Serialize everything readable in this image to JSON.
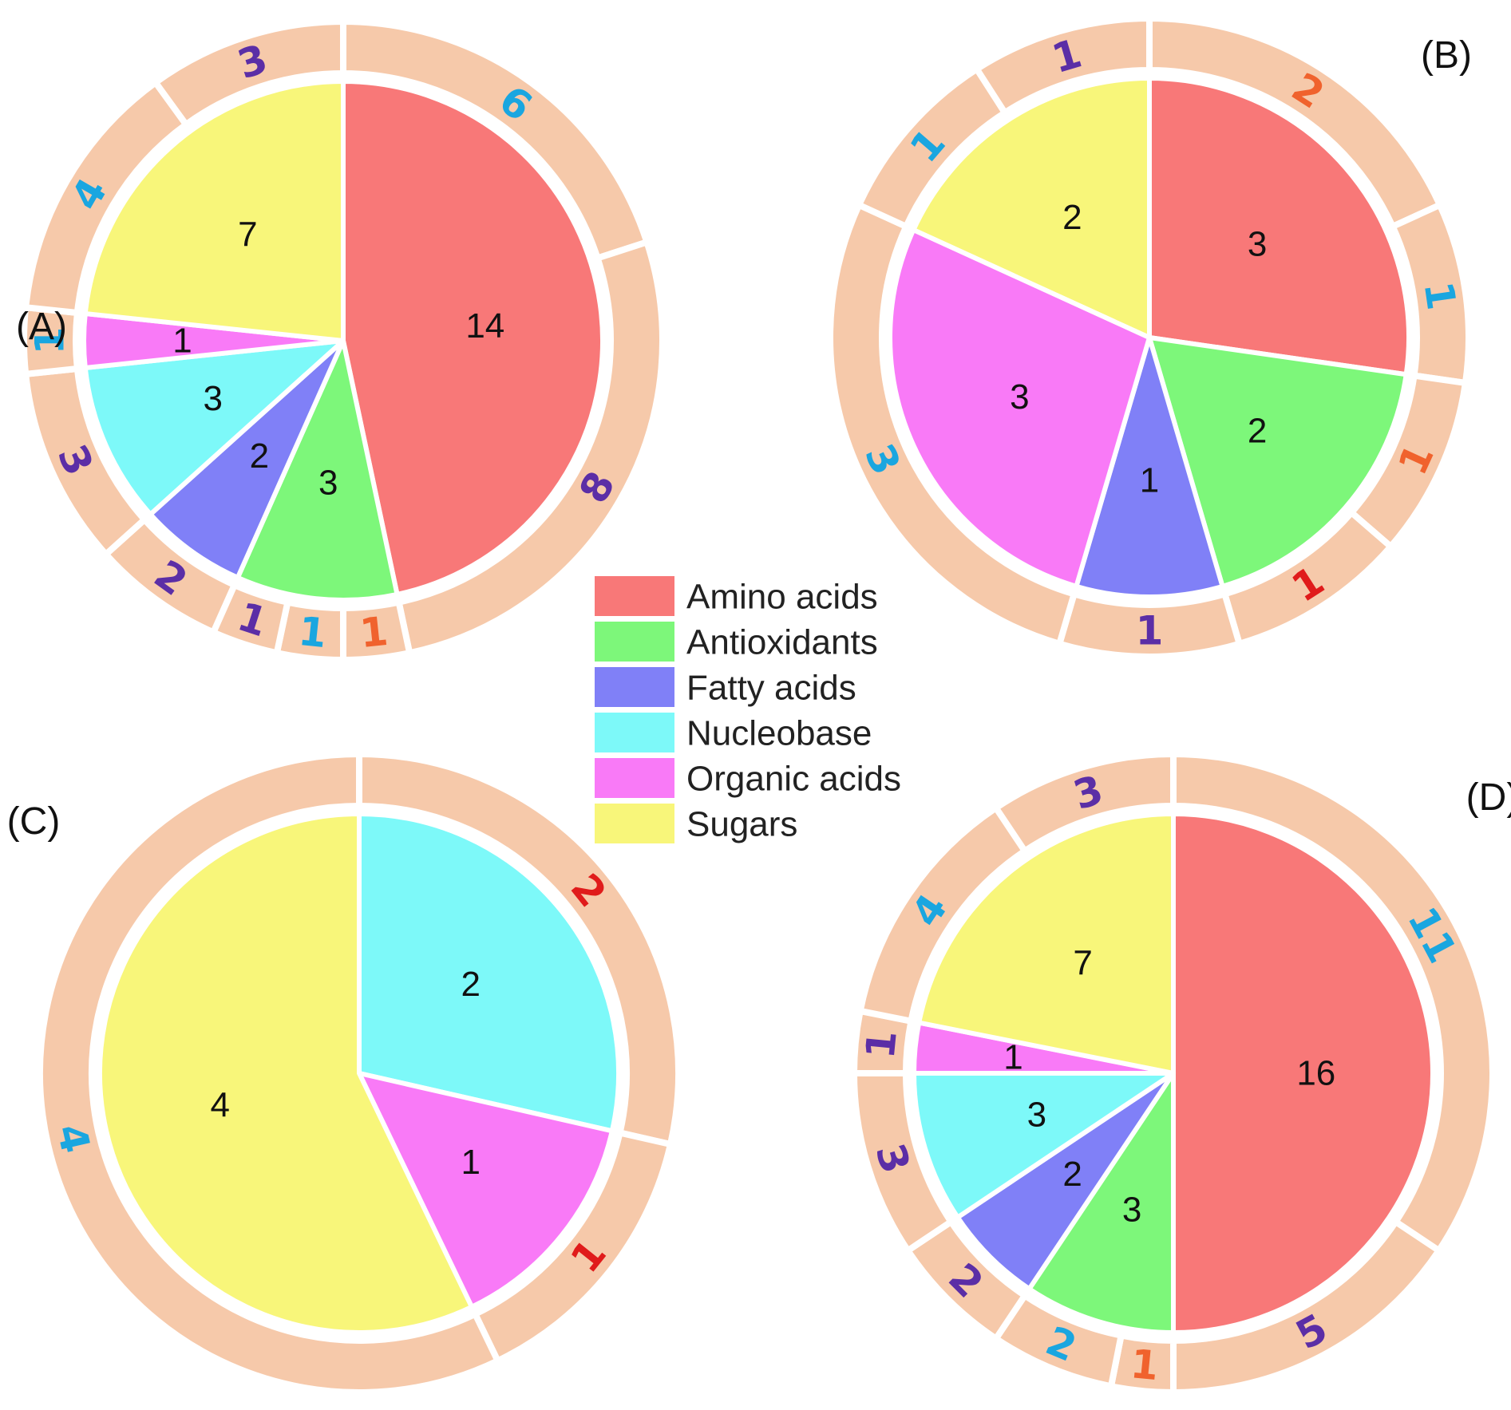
{
  "chart_data": [
    {
      "type": "pie",
      "panel": "(A)",
      "slices": [
        {
          "category": "Amino acids",
          "value": 14,
          "color": "#f87878"
        },
        {
          "category": "Antioxidants",
          "value": 3,
          "color": "#7df77a"
        },
        {
          "category": "Fatty acids",
          "value": 2,
          "color": "#8080f7"
        },
        {
          "category": "Nucleobase",
          "value": 3,
          "color": "#7df9f9"
        },
        {
          "category": "Organic acids",
          "value": 1,
          "color": "#f97af7"
        },
        {
          "category": "Sugars",
          "value": 7,
          "color": "#f8f67a"
        }
      ],
      "outer_ring": [
        {
          "value": 6,
          "color": "#1aa6e0"
        },
        {
          "value": 8,
          "color": "#5b2ea6"
        },
        {
          "value": 1,
          "color": "#f0622d"
        },
        {
          "value": 1,
          "color": "#1aa6e0"
        },
        {
          "value": 1,
          "color": "#5b2ea6"
        },
        {
          "value": 2,
          "color": "#5b2ea6"
        },
        {
          "value": 3,
          "color": "#5b2ea6"
        },
        {
          "value": 1,
          "color": "#1aa6e0"
        },
        {
          "value": 4,
          "color": "#1aa6e0"
        },
        {
          "value": 3,
          "color": "#5b2ea6"
        }
      ]
    },
    {
      "type": "pie",
      "panel": "(B)",
      "slices": [
        {
          "category": "Amino acids",
          "value": 3,
          "color": "#f87878"
        },
        {
          "category": "Antioxidants",
          "value": 2,
          "color": "#7df77a"
        },
        {
          "category": "Fatty acids",
          "value": 1,
          "color": "#8080f7"
        },
        {
          "category": "Organic acids",
          "value": 3,
          "color": "#f97af7"
        },
        {
          "category": "Sugars",
          "value": 2,
          "color": "#f8f67a"
        }
      ],
      "outer_ring": [
        {
          "value": 2,
          "color": "#f0622d"
        },
        {
          "value": 1,
          "color": "#1aa6e0"
        },
        {
          "value": 1,
          "color": "#f0622d"
        },
        {
          "value": 1,
          "color": "#e01b1b"
        },
        {
          "value": 1,
          "color": "#5b2ea6"
        },
        {
          "value": 3,
          "color": "#1aa6e0"
        },
        {
          "value": 1,
          "color": "#1aa6e0"
        },
        {
          "value": 1,
          "color": "#5b2ea6"
        }
      ]
    },
    {
      "type": "pie",
      "panel": "(C)",
      "slices": [
        {
          "category": "Nucleobase",
          "value": 2,
          "color": "#7df9f9"
        },
        {
          "category": "Organic acids",
          "value": 1,
          "color": "#f97af7"
        },
        {
          "category": "Sugars",
          "value": 4,
          "color": "#f8f67a"
        }
      ],
      "outer_ring": [
        {
          "value": 2,
          "color": "#e01b1b"
        },
        {
          "value": 1,
          "color": "#e01b1b"
        },
        {
          "value": 4,
          "color": "#1aa6e0"
        }
      ]
    },
    {
      "type": "pie",
      "panel": "(D)",
      "slices": [
        {
          "category": "Amino acids",
          "value": 16,
          "color": "#f87878"
        },
        {
          "category": "Antioxidants",
          "value": 3,
          "color": "#7df77a"
        },
        {
          "category": "Fatty acids",
          "value": 2,
          "color": "#8080f7"
        },
        {
          "category": "Nucleobase",
          "value": 3,
          "color": "#7df9f9"
        },
        {
          "category": "Organic acids",
          "value": 1,
          "color": "#f97af7"
        },
        {
          "category": "Sugars",
          "value": 7,
          "color": "#f8f67a"
        }
      ],
      "outer_ring": [
        {
          "value": 11,
          "color": "#1aa6e0"
        },
        {
          "value": 5,
          "color": "#5b2ea6"
        },
        {
          "value": 1,
          "color": "#f0622d"
        },
        {
          "value": 2,
          "color": "#1aa6e0"
        },
        {
          "value": 2,
          "color": "#5b2ea6"
        },
        {
          "value": 3,
          "color": "#5b2ea6"
        },
        {
          "value": 1,
          "color": "#5b2ea6"
        },
        {
          "value": 4,
          "color": "#1aa6e0"
        },
        {
          "value": 3,
          "color": "#5b2ea6"
        }
      ]
    }
  ],
  "legend": [
    {
      "label": "Amino acids",
      "color": "#f87878"
    },
    {
      "label": "Antioxidants",
      "color": "#7df77a"
    },
    {
      "label": "Fatty acids",
      "color": "#8080f7"
    },
    {
      "label": "Nucleobase",
      "color": "#7df9f9"
    },
    {
      "label": "Organic acids",
      "color": "#f97af7"
    },
    {
      "label": "Sugars",
      "color": "#f8f67a"
    }
  ],
  "ring_color": "#f6c9aa"
}
